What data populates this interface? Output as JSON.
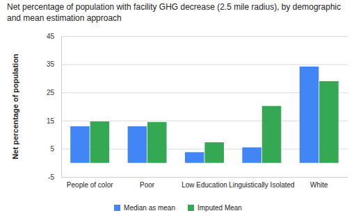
{
  "chart_data": {
    "type": "bar",
    "title": "Net percentage of population with facility GHG decrease (2.5 mile radius), by demographic and mean estimation approach",
    "y_label": "Net percentage of population",
    "categories": [
      "People of color",
      "Poor",
      "Low Education",
      "Linguistically Isolated",
      "White"
    ],
    "series": [
      {
        "name": "Median as mean",
        "color": "#4285f4",
        "values": [
          13,
          13,
          3.8,
          5.5,
          34.2
        ]
      },
      {
        "name": "Imputed Mean",
        "color": "#34a853",
        "values": [
          14.7,
          14.5,
          7.3,
          20.2,
          29
        ]
      }
    ],
    "ylim": [
      -5,
      45
    ],
    "yticks": [
      -5,
      5,
      15,
      25,
      35,
      45
    ],
    "grid": true,
    "legend": "bottom"
  }
}
